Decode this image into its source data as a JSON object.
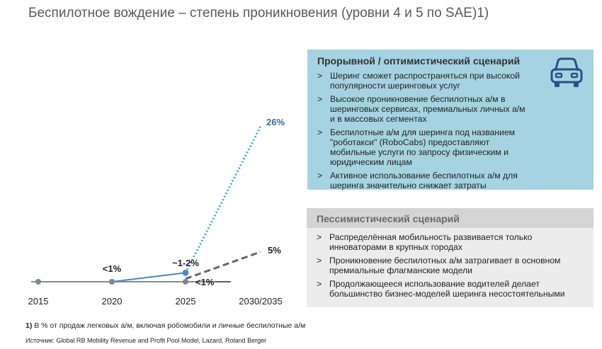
{
  "header": {
    "title": "Беспилотное вождение – степень проникновения (уровни 4 и 5 по SAE)1)"
  },
  "chart_data": {
    "type": "line",
    "categories": [
      "2015",
      "2020",
      "2025",
      "2030/2035"
    ],
    "series": [
      {
        "values": [
          0,
          0,
          0,
          null
        ],
        "color": "#8a8a8a",
        "style": "solid"
      },
      {
        "values": [
          null,
          null,
          1.5,
          26
        ],
        "color": "#4aa6cc",
        "style": "dotted"
      },
      {
        "values": [
          null,
          null,
          0.5,
          5
        ],
        "color": "#666666",
        "style": "dashed"
      },
      {
        "values": [
          null,
          0,
          1.5,
          null
        ],
        "color": "#4a8bc4",
        "style": "solid"
      }
    ],
    "data_labels": {
      "l2020": "<1%",
      "l2025a": "~1-2%",
      "l2025b": "<1%",
      "lopt": "26%",
      "lpes": "5%"
    },
    "ylim": [
      0,
      27
    ],
    "grid": false
  },
  "colors": {
    "optimistic_bg": "#a5d3e1",
    "optimistic_icon": "#2b4f8a",
    "pessimistic_bg": "#ececec",
    "pessimistic_head": "#d4d4d4"
  },
  "optimistic": {
    "heading": "Прорывной / оптимистический сценарий",
    "icon": "car-icon",
    "items": [
      "Шеринг сможет распространяться при высокой популярности шеринговых услуг",
      "Высокое проникновение беспилотных а/м в шеринговых сервисах, премиальных личных а/м и в массовых сегментах",
      "Беспилотные а/м для шеринга под названием \"роботакси\" (RoboCabs) предоставляют мобильные услуги по запросу физическим и юридическим лицам",
      "Активное использование беспилотных а/м для шеринга значительно снижает затраты"
    ]
  },
  "pessimistic": {
    "heading": "Пессимистический сценарий",
    "items": [
      "Распределённая мобильность развивается только инноваторами в крупных городах",
      "Проникновение беспилотных а/м затрагивает в основном премиальные флагманские модели",
      "Продолжающееся использование водителей делает большинство бизнес-моделей шеринга несостоятельными"
    ]
  },
  "footnote": {
    "marker": "1)",
    "text": " В % от продаж легковых а/м, включая робомобили и личные беспилотные а/м"
  },
  "source": "Источник: Global RB Mobility Revenue and Profit Pool Model, Lazard, Roland Berger"
}
